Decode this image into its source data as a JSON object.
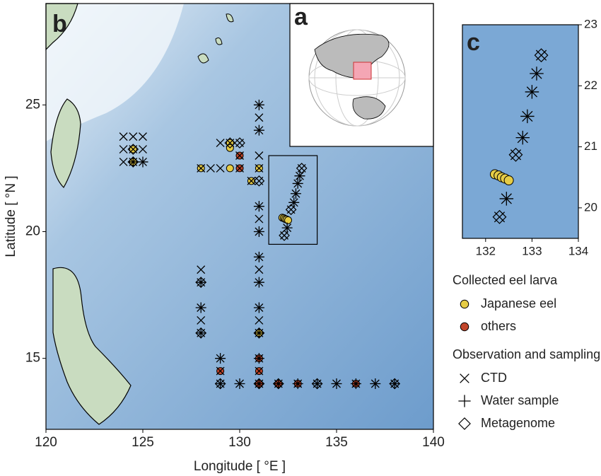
{
  "chart_data": {
    "type": "scatter",
    "panels": [
      {
        "label": "b",
        "xlabel": "Longitude [ °E ]",
        "ylabel": "Latitude [ °N ]",
        "xlim": [
          120,
          140
        ],
        "ylim": [
          12.2,
          29
        ],
        "xticks": [
          120,
          125,
          130,
          135,
          140
        ],
        "yticks": [
          15,
          20,
          25
        ]
      },
      {
        "label": "c",
        "xlim": [
          131.5,
          134
        ],
        "ylim": [
          19.5,
          23
        ],
        "xticks": [
          132,
          133,
          134
        ],
        "yticks": [
          20,
          21,
          22,
          23
        ]
      }
    ],
    "inset_label": "a",
    "legend_titles": [
      "Collected eel larva",
      "Observation and sampling"
    ],
    "series": [
      {
        "name": "Japanese eel",
        "group": 0,
        "marker": "circle",
        "color": "#e6cc45",
        "x": [
          124.5,
          124.5,
          128,
          129.5,
          129.5,
          129.5,
          131,
          130.6,
          131,
          132.2,
          132.28,
          132.35,
          132.42,
          132.5
        ],
        "y": [
          23.25,
          22.75,
          22.5,
          22.5,
          23.5,
          23.3,
          22.5,
          22,
          16,
          20.55,
          20.53,
          20.5,
          20.48,
          20.45
        ]
      },
      {
        "name": "others",
        "group": 0,
        "marker": "circle",
        "color": "#c2462b",
        "x": [
          130,
          130,
          131,
          131,
          129,
          131,
          132,
          133,
          136
        ],
        "y": [
          22.5,
          23,
          15,
          14.5,
          14.5,
          14,
          14,
          14,
          14
        ]
      },
      {
        "name": "CTD",
        "group": 1,
        "marker": "cross",
        "x": [
          124,
          124.5,
          125,
          124,
          124.5,
          125,
          124,
          124.5,
          125,
          128,
          128.5,
          129,
          130,
          131,
          129,
          129.5,
          130,
          130,
          131,
          131,
          131,
          131,
          131,
          131,
          131,
          131,
          131,
          131,
          131,
          131,
          131,
          131,
          131,
          131,
          131,
          128,
          128,
          128,
          128,
          128,
          129,
          129,
          129,
          130,
          132,
          133,
          134,
          135,
          136,
          137,
          138,
          130.6,
          132.3,
          132.45,
          132.65,
          132.8,
          132.9,
          133,
          133.1,
          133.2
        ],
        "y": [
          23.75,
          23.75,
          23.75,
          23.25,
          23.25,
          23.25,
          22.75,
          22.75,
          22.75,
          22.5,
          22.5,
          22.5,
          22.5,
          22.5,
          23.5,
          23.5,
          23.5,
          23,
          25,
          24.5,
          24,
          23,
          22,
          21,
          20.5,
          20,
          19,
          18.5,
          18,
          17,
          16.5,
          16,
          15,
          14.5,
          14,
          18.5,
          18,
          17,
          16.5,
          16,
          15,
          14.5,
          14,
          14,
          14,
          14,
          14,
          14,
          14,
          14,
          14,
          22,
          19.85,
          20.15,
          20.87,
          21.15,
          21.5,
          21.9,
          22.2,
          22.5
        ]
      },
      {
        "name": "Water sample",
        "group": 1,
        "marker": "plus",
        "x": [
          131,
          131,
          131,
          131,
          131,
          131,
          131,
          131,
          131,
          131,
          128,
          128,
          128,
          129,
          129,
          130,
          132,
          133,
          134,
          135,
          136,
          137,
          138,
          124.5,
          125,
          132.45,
          132.8,
          132.9,
          133,
          133.1
        ],
        "y": [
          25,
          24,
          21,
          20,
          19,
          18,
          17,
          16,
          15,
          14,
          18,
          17,
          16,
          15,
          14,
          14,
          14,
          14,
          14,
          14,
          14,
          14,
          14,
          22.75,
          22.75,
          20.15,
          21.15,
          21.5,
          21.9,
          22.2
        ]
      },
      {
        "name": "Metagenome",
        "group": 1,
        "marker": "diamond",
        "x": [
          124.5,
          124.5,
          128,
          128,
          129,
          131,
          131,
          132,
          134,
          138,
          129.5,
          130,
          131,
          132.3,
          132.65,
          133.2
        ],
        "y": [
          23.25,
          22.75,
          18,
          16,
          14,
          14,
          16,
          14,
          14,
          14,
          23.5,
          23.5,
          22,
          19.85,
          20.87,
          22.5
        ]
      }
    ]
  }
}
